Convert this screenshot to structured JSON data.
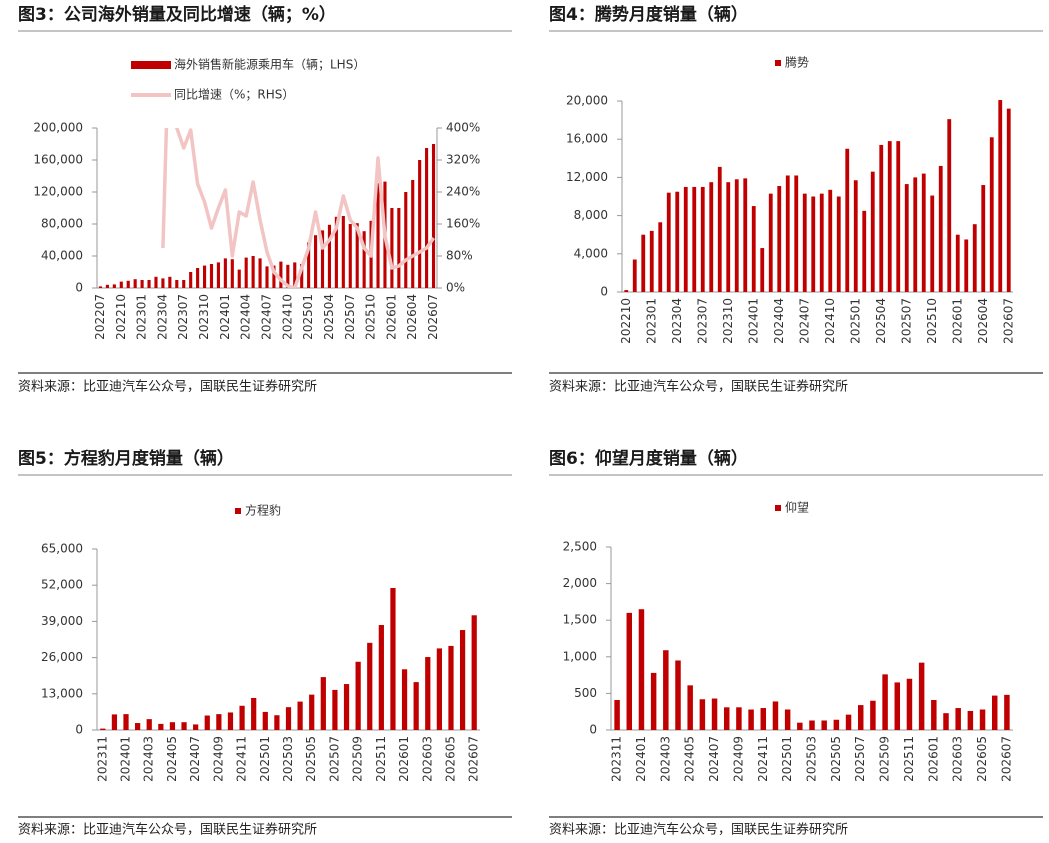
{
  "chart_data": [
    {
      "type": "bar",
      "title": "图3：公司海外销量及同比增速（辆；%）",
      "source": "资料来源：比亚迪汽车公众号，国联民生证券研究所",
      "categories": [
        "202207",
        null,
        null,
        "202210",
        null,
        null,
        "202301",
        null,
        null,
        "202304",
        null,
        null,
        "202307",
        null,
        null,
        "202310",
        null,
        null,
        "202401",
        null,
        null,
        "202404",
        null,
        null,
        "202407",
        null,
        null,
        "202410",
        null,
        null,
        "202501",
        null,
        null,
        "202504",
        null,
        null,
        "202507",
        null,
        null,
        "202510",
        null,
        null,
        "202601",
        null,
        null,
        "202604",
        null,
        null,
        "202607"
      ],
      "series": [
        {
          "name": "海外销售新能源乘用车（辆；LHS）",
          "type": "bar",
          "color": "#c00000",
          "values": [
            2000,
            4000,
            4500,
            8000,
            9000,
            11000,
            10000,
            10000,
            14000,
            12000,
            14000,
            10000,
            10000,
            20000,
            25000,
            28000,
            30000,
            32000,
            37000,
            36000,
            23000,
            38000,
            40000,
            37000,
            27000,
            28000,
            33000,
            29000,
            32000,
            30000,
            57000,
            66000,
            72000,
            79000,
            89000,
            90000,
            80000,
            81000,
            71000,
            84000,
            131000,
            133000,
            100000,
            100000,
            120000,
            135000,
            160000,
            175000,
            180000
          ]
        },
        {
          "name": "同比增速（%；RHS）",
          "type": "line",
          "axis": "y2",
          "color": "#f2c4c4",
          "values": [
            null,
            null,
            null,
            null,
            null,
            null,
            null,
            null,
            null,
            100,
            700,
            400,
            350,
            395,
            260,
            215,
            150,
            200,
            245,
            80,
            190,
            180,
            265,
            170,
            90,
            40,
            20,
            5,
            0,
            50,
            100,
            190,
            100,
            120,
            150,
            230,
            170,
            150,
            100,
            80,
            325,
            130,
            50,
            55,
            70,
            80,
            90,
            100,
            125
          ]
        }
      ],
      "ylim": [
        0,
        200000
      ],
      "yticks": [
        0,
        {
          "value": 40000,
          "label": "40,000"
        },
        {
          "value": 80000,
          "label": "80,000"
        },
        {
          "value": 120000,
          "label": "120,000"
        },
        {
          "value": 160000,
          "label": "160,000"
        },
        {
          "value": 200000,
          "label": "200,000"
        }
      ],
      "y2lim": [
        0,
        400
      ],
      "y2ticks": [
        {
          "value": 0,
          "label": "0%"
        },
        {
          "value": 80,
          "label": "80%"
        },
        {
          "value": 160,
          "label": "160%"
        },
        {
          "value": 240,
          "label": "240%"
        },
        {
          "value": 320,
          "label": "320%"
        },
        {
          "value": 400,
          "label": "400%"
        }
      ]
    },
    {
      "type": "bar",
      "title": "图4：腾势月度销量（辆）",
      "source": "资料来源：比亚迪汽车公众号，国联民生证券研究所",
      "categories": [
        "202210",
        null,
        null,
        "202301",
        null,
        null,
        "202304",
        null,
        null,
        "202307",
        null,
        null,
        "202310",
        null,
        null,
        "202401",
        null,
        null,
        "202404",
        null,
        null,
        "202407",
        null,
        null,
        "202410",
        null,
        null,
        "202501",
        null,
        null,
        "202504",
        null,
        null,
        "202507",
        null,
        null,
        "202510",
        null,
        null,
        "202601",
        null,
        null,
        "202604",
        null,
        null,
        "202607"
      ],
      "series": [
        {
          "name": "腾势",
          "type": "bar",
          "color": "#c00000",
          "values": [
            200,
            3400,
            6000,
            6400,
            7300,
            10400,
            10500,
            11000,
            11000,
            11000,
            11500,
            13100,
            11500,
            11800,
            11900,
            9000,
            4600,
            10300,
            11100,
            12200,
            12200,
            10300,
            10000,
            10300,
            10700,
            10000,
            15000,
            11700,
            8500,
            12600,
            15400,
            15800,
            15800,
            11300,
            12000,
            12400,
            10100,
            13200,
            18100,
            6000,
            5500,
            7100,
            11200,
            16200,
            20100,
            19200
          ]
        }
      ],
      "ylim": [
        0,
        20000
      ],
      "yticks": [
        0,
        {
          "value": 4000,
          "label": "4,000"
        },
        {
          "value": 8000,
          "label": "8,000"
        },
        {
          "value": 12000,
          "label": "12,000"
        },
        {
          "value": 16000,
          "label": "16,000"
        },
        {
          "value": 20000,
          "label": "20,000"
        }
      ]
    },
    {
      "type": "bar",
      "title": "图5：方程豹月度销量（辆）",
      "source": "资料来源：比亚迪汽车公众号，国联民生证券研究所",
      "categories": [
        "202311",
        null,
        "202401",
        null,
        "202403",
        null,
        "202405",
        null,
        "202407",
        null,
        "202409",
        null,
        "202411",
        null,
        "202501",
        null,
        "202503",
        null,
        "202505",
        null,
        "202507",
        null,
        "202509",
        null,
        "202511",
        null,
        "202601",
        null,
        "202603",
        null,
        "202605",
        null,
        "202607"
      ],
      "series": [
        {
          "name": "方程豹",
          "type": "bar",
          "color": "#c00000",
          "values": [
            500,
            5600,
            5700,
            2500,
            3900,
            2200,
            2800,
            2800,
            2000,
            5200,
            5700,
            6300,
            8700,
            11500,
            6500,
            5300,
            8200,
            10200,
            12700,
            19000,
            14400,
            16500,
            24500,
            31300,
            37700,
            51000,
            21800,
            17200,
            26200,
            29300,
            30200,
            35900,
            41200
          ]
        }
      ],
      "ylim": [
        0,
        65000
      ],
      "yticks": [
        0,
        {
          "value": 13000,
          "label": "13,000"
        },
        {
          "value": 26000,
          "label": "26,000"
        },
        {
          "value": 39000,
          "label": "39,000"
        },
        {
          "value": 52000,
          "label": "52,000"
        },
        {
          "value": 65000,
          "label": "65,000"
        }
      ]
    },
    {
      "type": "bar",
      "title": "图6：仰望月度销量（辆）",
      "source": "资料来源：比亚迪汽车公众号，国联民生证券研究所",
      "categories": [
        "202311",
        null,
        "202401",
        null,
        "202403",
        null,
        "202405",
        null,
        "202407",
        null,
        "202409",
        null,
        "202411",
        null,
        "202501",
        null,
        "202503",
        null,
        "202505",
        null,
        "202507",
        null,
        "202509",
        null,
        "202511",
        null,
        "202601",
        null,
        "202603",
        null,
        "202605",
        null,
        "202607"
      ],
      "series": [
        {
          "name": "仰望",
          "type": "bar",
          "color": "#c00000",
          "values": [
            410,
            1600,
            1650,
            780,
            1090,
            950,
            610,
            420,
            430,
            310,
            310,
            280,
            300,
            390,
            280,
            100,
            130,
            130,
            140,
            210,
            340,
            400,
            760,
            650,
            700,
            920,
            410,
            230,
            300,
            260,
            280,
            470,
            480
          ]
        }
      ],
      "ylim": [
        0,
        2500
      ],
      "yticks": [
        0,
        500,
        {
          "value": 1000,
          "label": "1,000"
        },
        {
          "value": 1500,
          "label": "1,500"
        },
        {
          "value": 2000,
          "label": "2,000"
        },
        {
          "value": 2500,
          "label": "2,500"
        }
      ]
    }
  ]
}
